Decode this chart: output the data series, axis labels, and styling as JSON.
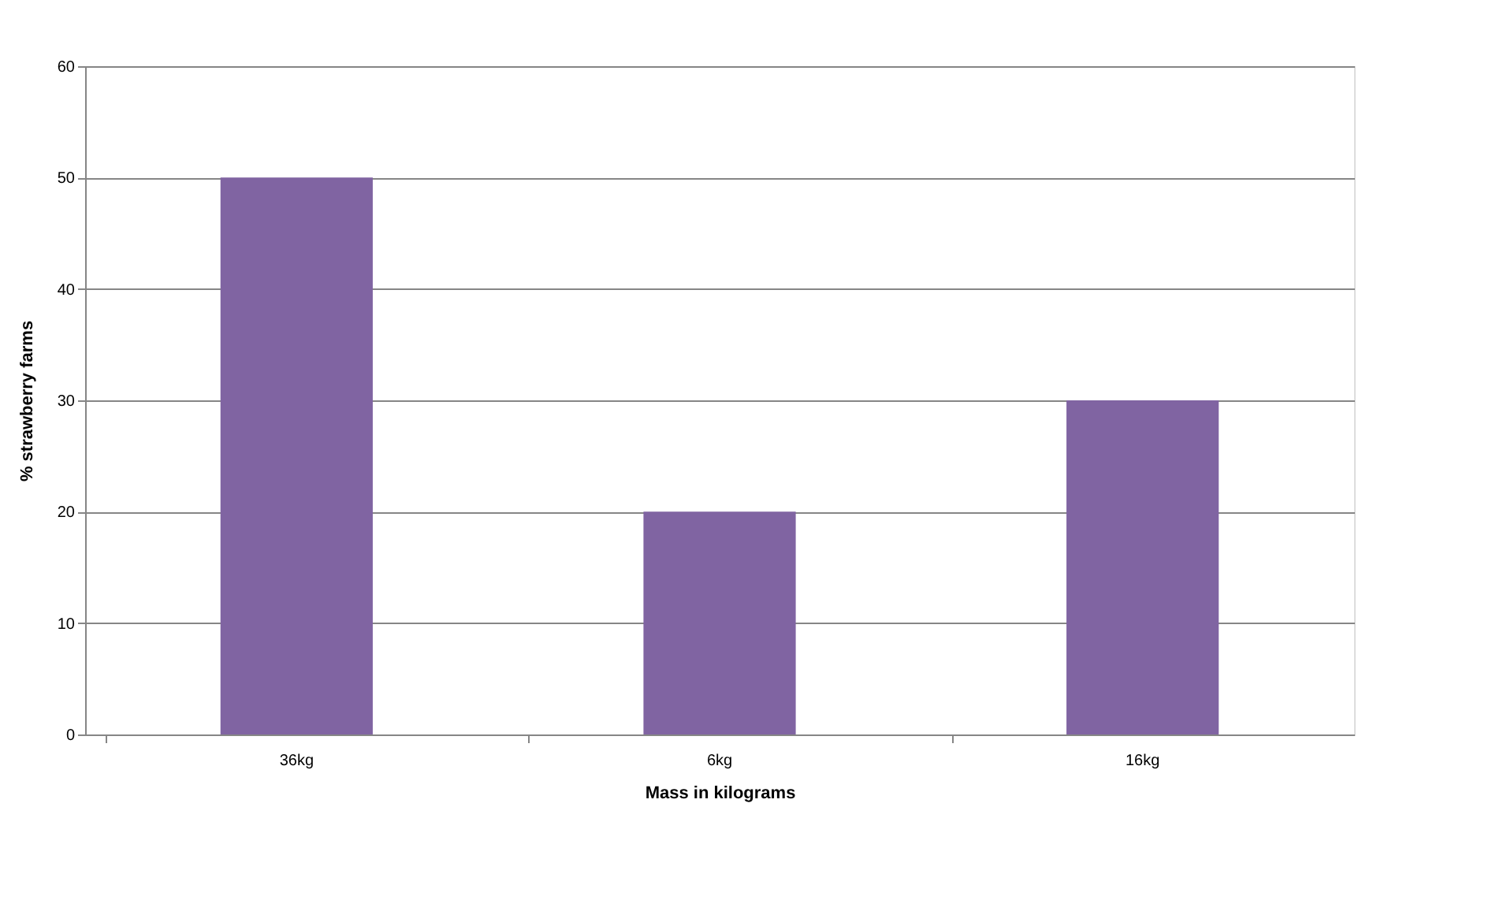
{
  "chart_data": {
    "type": "bar",
    "xlabel": "Mass in kilograms",
    "ylabel": "% strawberry farms",
    "categories": [
      "36kg",
      "6kg",
      "16kg"
    ],
    "values": [
      50,
      20,
      30
    ],
    "color": "#8064a2",
    "ylim": [
      0,
      60
    ],
    "yticks": [
      0,
      10,
      20,
      30,
      40,
      50,
      60
    ],
    "grid": "y"
  }
}
